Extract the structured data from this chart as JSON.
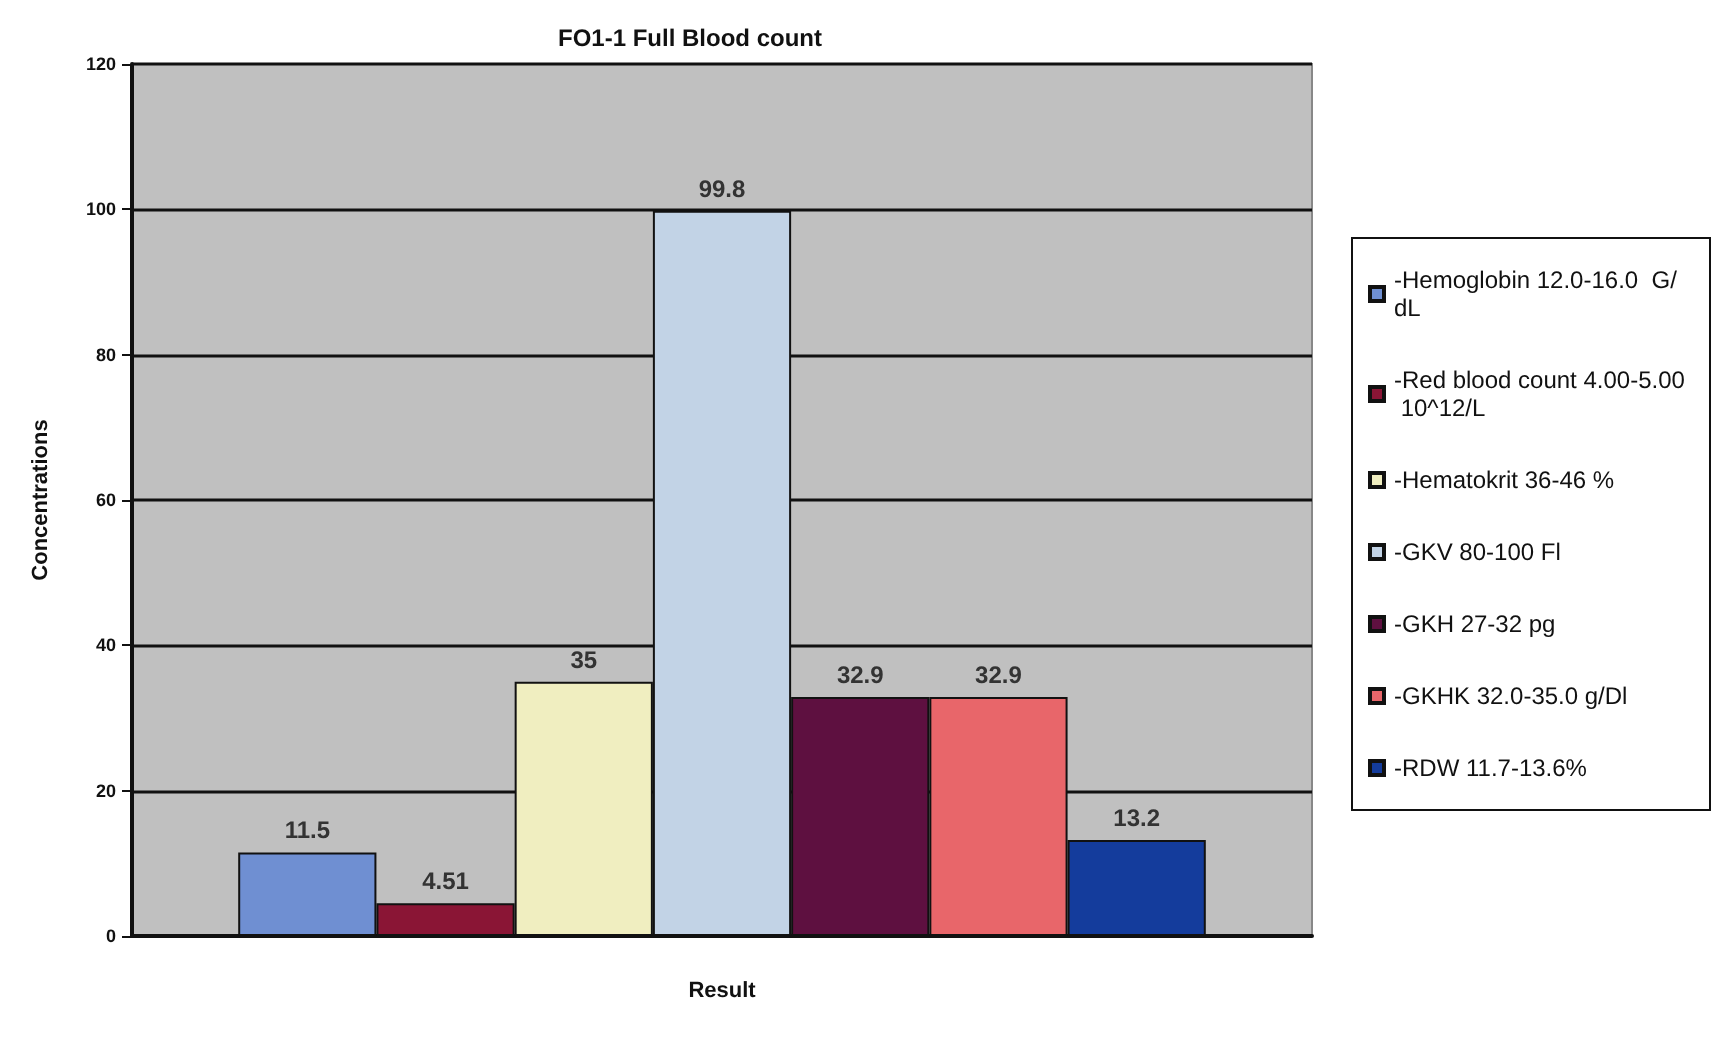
{
  "chart_data": {
    "type": "bar",
    "title": "FO1-1 Full Blood count",
    "xlabel": "Result",
    "ylabel": "Concentrations",
    "categories": [
      null
    ],
    "series": [
      {
        "name": "-Hemoglobin 12.0-16.0  G/dL",
        "color": "#6f8fd2",
        "values": [
          11.5
        ]
      },
      {
        "name": "-Red blood count 4.00-5.00  10^12/L",
        "color": "#8a1535",
        "values": [
          4.51
        ]
      },
      {
        "name": "-Hematokrit 36-46 %",
        "color": "#f0eec0",
        "values": [
          35
        ]
      },
      {
        "name": "-GKV 80-100 Fl",
        "color": "#c2d3e6",
        "values": [
          99.8
        ]
      },
      {
        "name": "-GKH 27-32 pg",
        "color": "#5e1040",
        "values": [
          32.9
        ]
      },
      {
        "name": "-GKHK 32.0-35.0 g/Dl",
        "color": "#e8666a",
        "values": [
          32.9
        ]
      },
      {
        "name": "-RDW 11.7-13.6%",
        "color": "#143c9c",
        "values": [
          13.2
        ]
      }
    ],
    "ylim": [
      0,
      120
    ],
    "yticks": [
      0,
      20,
      40,
      60,
      80,
      100,
      120
    ],
    "grid": "y",
    "legend": "right",
    "data_labels": true
  }
}
